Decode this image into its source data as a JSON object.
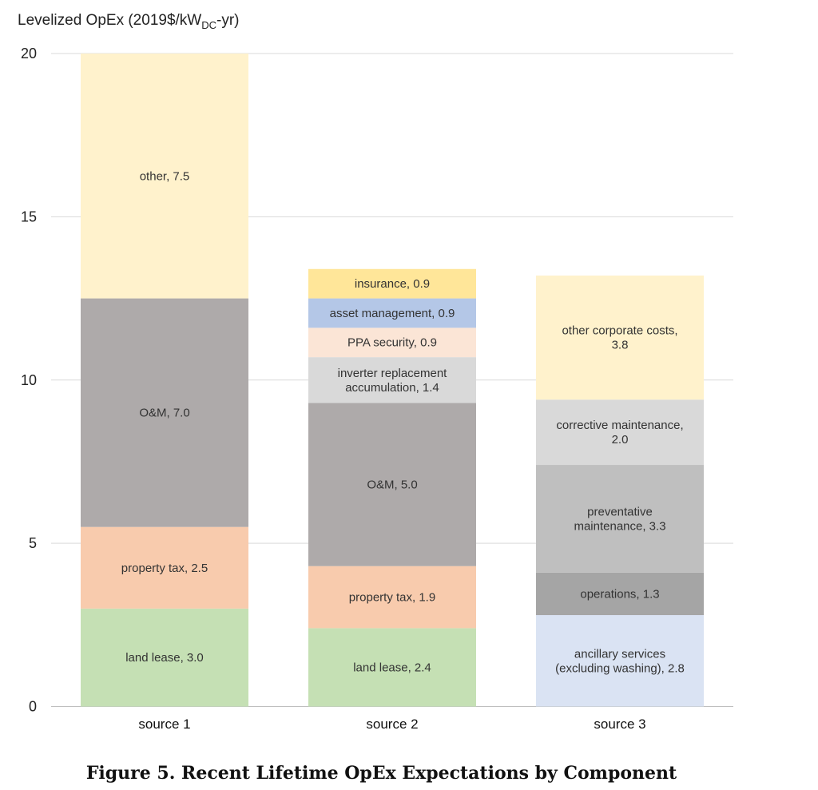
{
  "chart_data": {
    "type": "bar",
    "stacked": true,
    "ylabel_main": "Levelized OpEx (2019$/kW",
    "ylabel_sub": "DC",
    "ylabel_tail": "-yr)",
    "ylim": [
      0,
      20
    ],
    "yticks": [
      "0",
      "5",
      "10",
      "15",
      "20"
    ],
    "grid": true,
    "categories": [
      "source 1",
      "source 2",
      "source 3"
    ],
    "stacks": [
      {
        "category": "source 1",
        "segments": [
          {
            "name": "land lease",
            "value": 3.0,
            "label": [
              "land lease, 3.0"
            ],
            "color": "#c5e0b4"
          },
          {
            "name": "property tax",
            "value": 2.5,
            "label": [
              "property tax, 2.5"
            ],
            "color": "#f8cbad"
          },
          {
            "name": "O&M",
            "value": 7.0,
            "label": [
              "O&M, 7.0"
            ],
            "color": "#aeaaaa"
          },
          {
            "name": "other",
            "value": 7.5,
            "label": [
              "other, 7.5"
            ],
            "color": "#fff2cc"
          }
        ]
      },
      {
        "category": "source 2",
        "segments": [
          {
            "name": "land lease",
            "value": 2.4,
            "label": [
              "land lease, 2.4"
            ],
            "color": "#c5e0b4"
          },
          {
            "name": "property tax",
            "value": 1.9,
            "label": [
              "property tax, 1.9"
            ],
            "color": "#f8cbad"
          },
          {
            "name": "O&M",
            "value": 5.0,
            "label": [
              "O&M, 5.0"
            ],
            "color": "#aeaaaa"
          },
          {
            "name": "inverter replacement accumulation",
            "value": 1.4,
            "label": [
              "inverter replacement",
              "accumulation, 1.4"
            ],
            "color": "#d9d9d9"
          },
          {
            "name": "PPA security",
            "value": 0.9,
            "label": [
              "PPA security, 0.9"
            ],
            "color": "#fbe5d6"
          },
          {
            "name": "asset management",
            "value": 0.9,
            "label": [
              "asset management, 0.9"
            ],
            "color": "#b4c7e7"
          },
          {
            "name": "insurance",
            "value": 0.9,
            "label": [
              "insurance, 0.9"
            ],
            "color": "#ffe699"
          }
        ]
      },
      {
        "category": "source 3",
        "segments": [
          {
            "name": "ancillary services (excluding washing)",
            "value": 2.8,
            "label": [
              "ancillary services",
              "(excluding washing), 2.8"
            ],
            "color": "#dae3f3"
          },
          {
            "name": "operations",
            "value": 1.3,
            "label": [
              "operations, 1.3"
            ],
            "color": "#a5a5a5"
          },
          {
            "name": "preventative maintenance",
            "value": 3.3,
            "label": [
              "preventative",
              "maintenance, 3.3"
            ],
            "color": "#bfbfbf"
          },
          {
            "name": "corrective maintenance",
            "value": 2.0,
            "label": [
              "corrective maintenance,",
              "2.0"
            ],
            "color": "#d9d9d9"
          },
          {
            "name": "other corporate costs",
            "value": 3.8,
            "label": [
              "other corporate costs,",
              "3.8"
            ],
            "color": "#fff2cc"
          }
        ]
      }
    ]
  },
  "caption": "Figure 5. Recent Lifetime OpEx Expectations by Component"
}
